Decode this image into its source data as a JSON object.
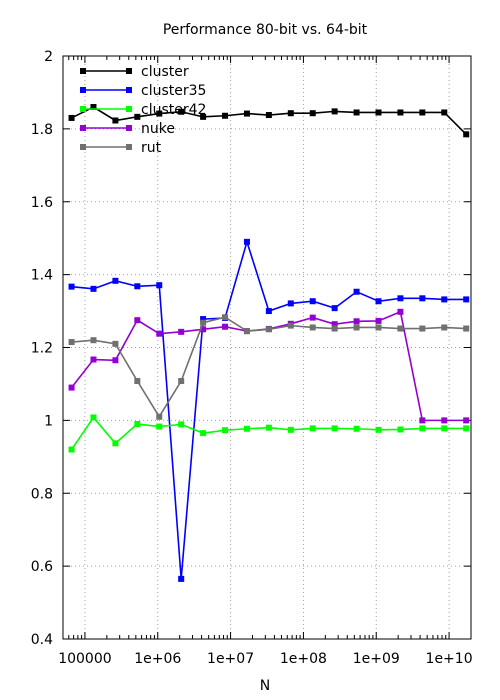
{
  "chart_data": {
    "type": "line",
    "title": "Performance 80-bit vs. 64-bit",
    "xlabel": "N",
    "ylabel": "",
    "xscale": "log",
    "xlim": [
      50000,
      20000000000
    ],
    "ylim": [
      0.4,
      2.0
    ],
    "grid": true,
    "grid_style": "dotted",
    "legend_position": "top-left",
    "x_ticks": [
      {
        "value": 100000,
        "label": "100000"
      },
      {
        "value": 1000000,
        "label": "1e+06"
      },
      {
        "value": 10000000,
        "label": "1e+07"
      },
      {
        "value": 100000000,
        "label": "1e+08"
      },
      {
        "value": 1000000000,
        "label": "1e+09"
      },
      {
        "value": 10000000000,
        "label": "1e+10"
      }
    ],
    "y_ticks": [
      {
        "value": 0.4,
        "label": "0.4"
      },
      {
        "value": 0.6,
        "label": "0.6"
      },
      {
        "value": 0.8,
        "label": "0.8"
      },
      {
        "value": 1.0,
        "label": "1"
      },
      {
        "value": 1.2,
        "label": "1.2"
      },
      {
        "value": 1.4,
        "label": "1.4"
      },
      {
        "value": 1.6,
        "label": "1.6"
      },
      {
        "value": 1.8,
        "label": "1.8"
      },
      {
        "value": 2.0,
        "label": "2"
      }
    ],
    "x": [
      65536,
      131072,
      262144,
      524288,
      1048576,
      2097152,
      4194304,
      8388608,
      16777216,
      33554432,
      67108864,
      134217728,
      268435456,
      536870912,
      1073741824,
      2147483648,
      4294967296,
      8589934592,
      17179869184
    ],
    "series": [
      {
        "name": "cluster",
        "color": "#000000",
        "values": [
          1.83,
          1.86,
          1.823,
          1.833,
          1.842,
          1.847,
          1.833,
          1.836,
          1.842,
          1.838,
          1.843,
          1.843,
          1.848,
          1.845,
          1.845,
          1.845,
          1.845,
          1.845,
          1.785
        ]
      },
      {
        "name": "cluster35",
        "color": "#0000ff",
        "values": [
          1.367,
          1.361,
          1.383,
          1.368,
          1.371,
          0.565,
          1.278,
          1.281,
          1.49,
          1.3,
          1.321,
          1.327,
          1.308,
          1.353,
          1.327,
          1.335,
          1.335,
          1.332,
          1.332
        ]
      },
      {
        "name": "cluster42",
        "color": "#00ff00",
        "values": [
          0.92,
          1.008,
          0.937,
          0.99,
          0.983,
          0.989,
          0.965,
          0.973,
          0.977,
          0.98,
          0.974,
          0.978,
          0.978,
          0.977,
          0.974,
          0.975,
          0.978,
          0.978,
          0.978
        ]
      },
      {
        "name": "nuke",
        "color": "#9400d3",
        "values": [
          1.09,
          1.167,
          1.165,
          1.275,
          1.238,
          1.243,
          1.25,
          1.257,
          1.245,
          1.251,
          1.265,
          1.282,
          1.264,
          1.272,
          1.273,
          1.298,
          1.0,
          1.0,
          1.0
        ]
      },
      {
        "name": "rut",
        "color": "#707070",
        "values": [
          1.215,
          1.22,
          1.21,
          1.108,
          1.01,
          1.108,
          1.268,
          1.283,
          1.245,
          1.25,
          1.26,
          1.255,
          1.252,
          1.255,
          1.255,
          1.252,
          1.252,
          1.255,
          1.252
        ]
      }
    ]
  }
}
